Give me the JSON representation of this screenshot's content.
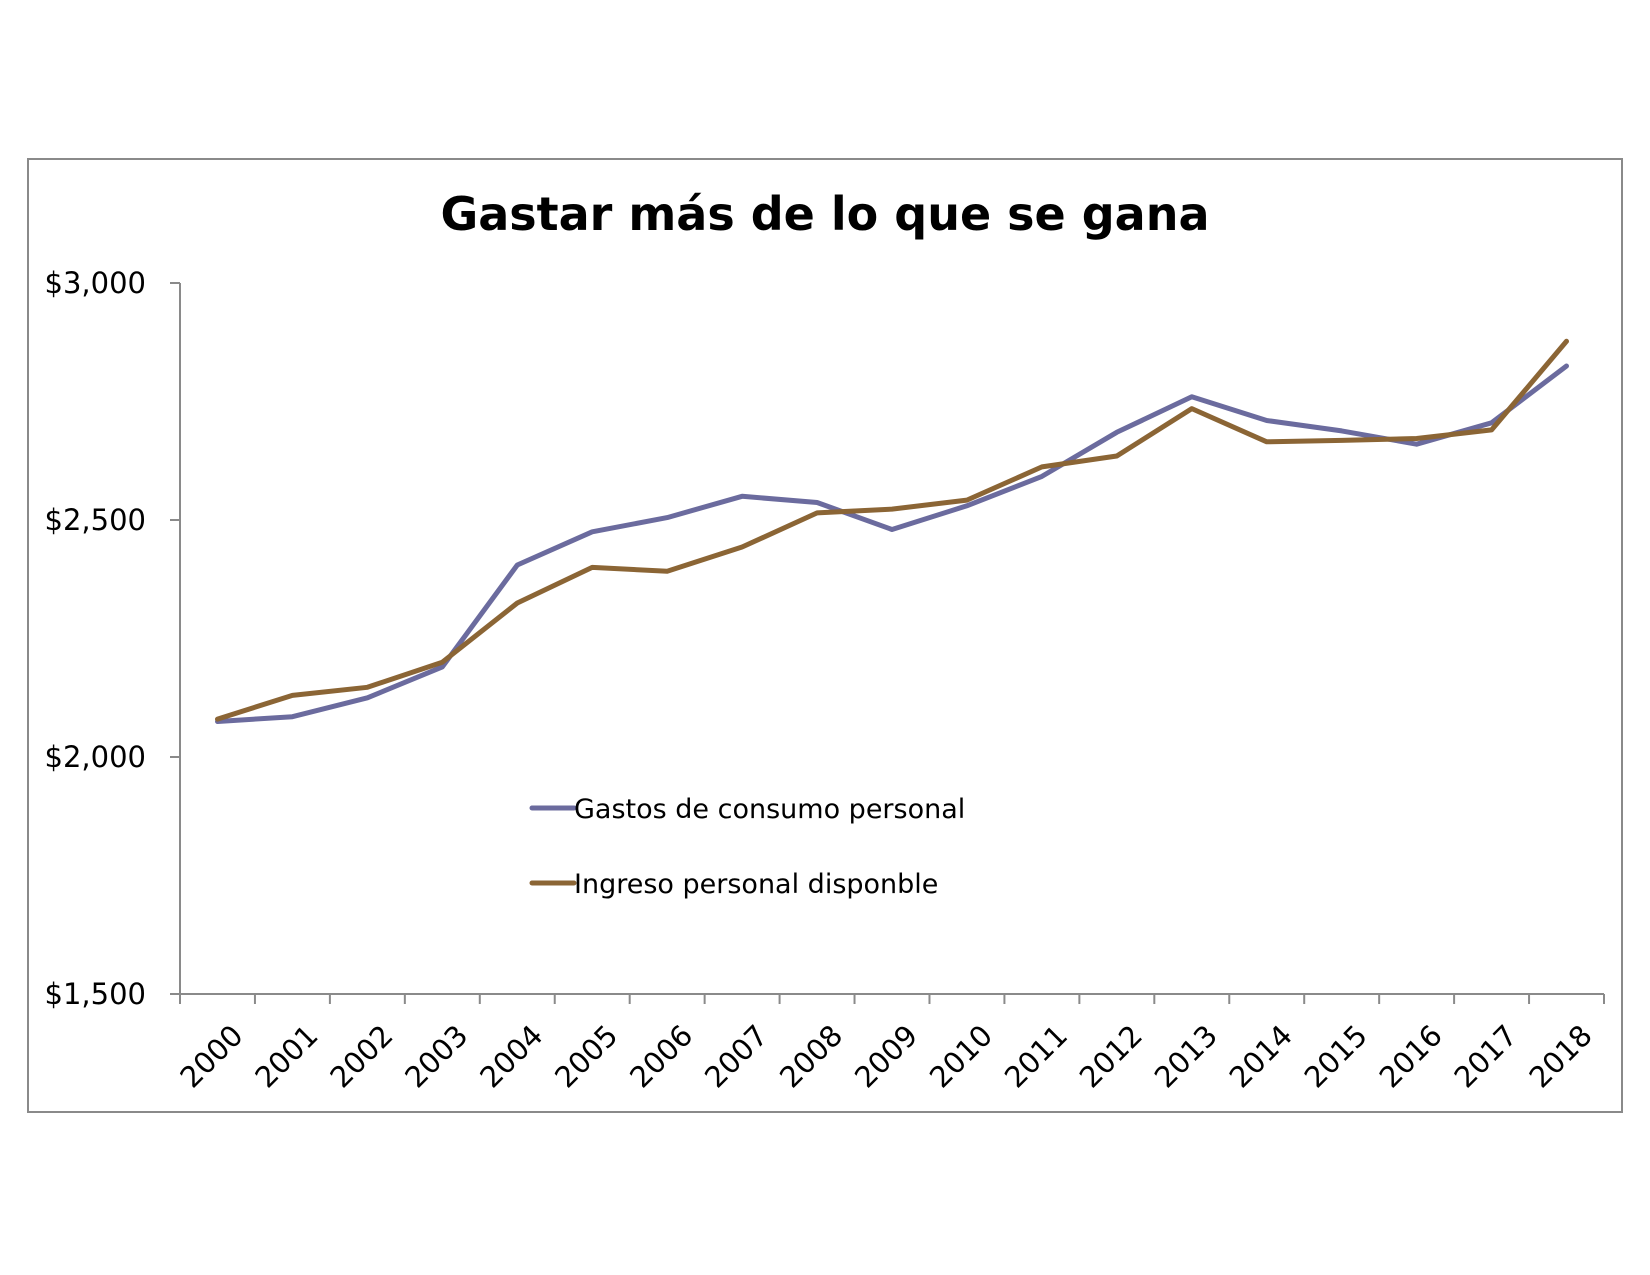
{
  "chart_data": {
    "type": "line",
    "title": "Gastar más de lo que se gana",
    "xlabel": "",
    "ylabel": "",
    "x": [
      "2000",
      "2001",
      "2002",
      "2003",
      "2004",
      "2005",
      "2006",
      "2007",
      "2008",
      "2009",
      "2010",
      "2011",
      "2012",
      "2013",
      "2014",
      "2015",
      "2016",
      "2017",
      "2018"
    ],
    "y_ticks": [
      "$1,500",
      "$2,000",
      "$2,500",
      "$3,000"
    ],
    "y_tick_values": [
      1500,
      2000,
      2500,
      3000
    ],
    "ylim": [
      1500,
      3000
    ],
    "grid": false,
    "legend_position": "center-left inside plot",
    "series": [
      {
        "name": "Gastos de consumo personal",
        "color": "#6b6b9e",
        "values": [
          2075,
          2085,
          2125,
          2190,
          2405,
          2475,
          2505,
          2550,
          2537,
          2480,
          2530,
          2592,
          2685,
          2760,
          2710,
          2688,
          2660,
          2705,
          2825
        ]
      },
      {
        "name": "Ingreso personal disponble",
        "color": "#8b6535",
        "values": [
          2080,
          2130,
          2147,
          2200,
          2325,
          2400,
          2392,
          2443,
          2515,
          2523,
          2542,
          2612,
          2635,
          2735,
          2665,
          2668,
          2672,
          2690,
          2877
        ]
      }
    ]
  }
}
